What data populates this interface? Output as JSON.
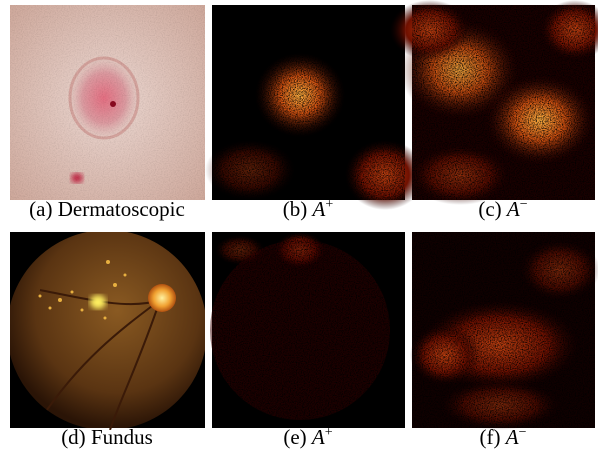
{
  "figure": {
    "panels": [
      {
        "caption": {
          "label": "(a)",
          "text": "Dermatoscopic"
        }
      },
      {
        "caption": {
          "label": "(b)",
          "symbol": "A",
          "superscript": "+"
        }
      },
      {
        "caption": {
          "label": "(c)",
          "symbol": "A",
          "superscript": "−"
        }
      },
      {
        "caption": {
          "label": "(d)",
          "text": "Fundus"
        }
      },
      {
        "caption": {
          "label": "(e)",
          "symbol": "A",
          "superscript": "+"
        }
      },
      {
        "caption": {
          "label": "(f)",
          "symbol": "A",
          "superscript": "−"
        }
      }
    ]
  }
}
